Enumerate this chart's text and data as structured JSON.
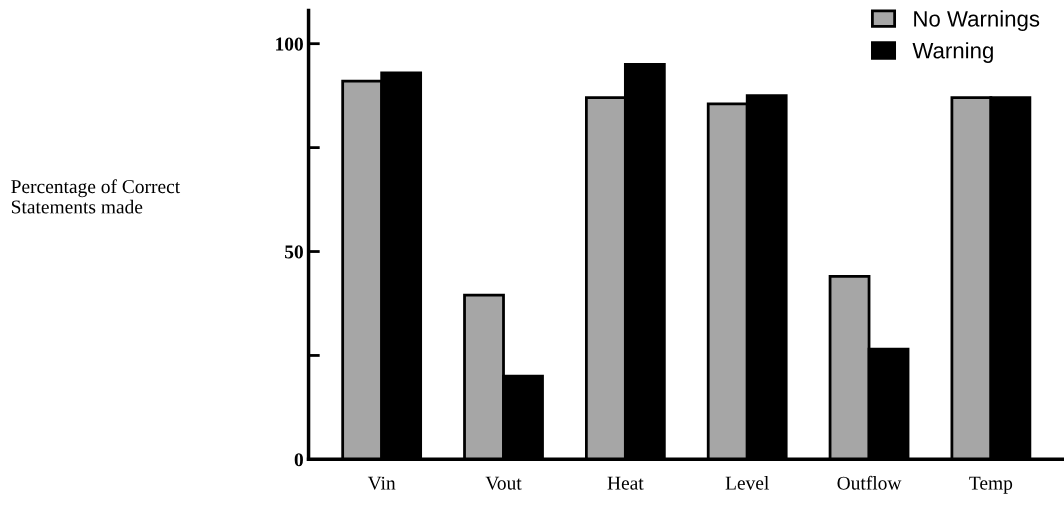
{
  "chart_data": {
    "type": "bar",
    "ylabel": "Percentage of Correct\nStatements made",
    "categories": [
      "Vin",
      "Vout",
      "Heat",
      "Level",
      "Outflow",
      "Temp"
    ],
    "series": [
      {
        "name": "No Warnings",
        "color": "#a6a6a6",
        "values": [
          91,
          39.5,
          87,
          85.5,
          44,
          87
        ]
      },
      {
        "name": "Warning",
        "color": "#000000",
        "values": [
          93,
          20,
          95,
          87.5,
          26.5,
          87
        ]
      }
    ],
    "ylim": [
      0,
      108
    ],
    "yticks": [
      0,
      {
        "value": 25,
        "label": null
      },
      50,
      {
        "value": 75,
        "label": null
      },
      100
    ],
    "legend": "top right",
    "grid": false
  }
}
